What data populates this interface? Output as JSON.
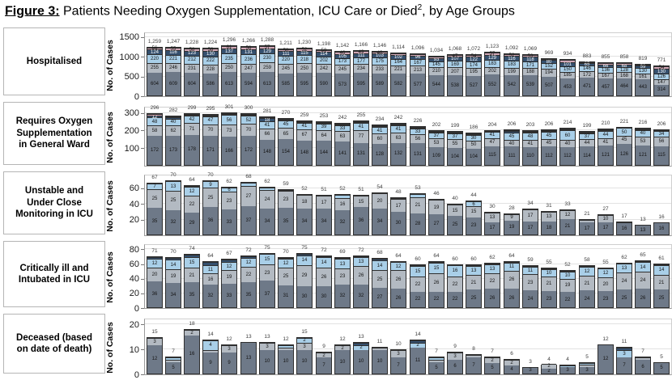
{
  "title": {
    "figure_label": "Figure 3:",
    "main": " Patients Needing Oxygen Supplementation, ICU Care or Died",
    "sup": "2",
    "tail": ", by Age Groups"
  },
  "y_axis_title": "No. of Cases",
  "colors": {
    "band1": "#6e7988",
    "band2": "#b3bac2",
    "band3": "#a9cfe8",
    "band4": "#35506e",
    "band5": "#d0a7b6",
    "outline": "#2f2f2f",
    "grid": "#e2e2e2"
  },
  "chart_data": [
    {
      "type": "bar",
      "stacked": true,
      "label_lines": [
        "Hospitalised"
      ],
      "ylabel": "No. of Cases",
      "yticks": [
        1500,
        1000,
        500,
        0
      ],
      "ylim": [
        0,
        1600
      ],
      "grid": true,
      "totals": [
        1259,
        1247,
        1228,
        1224,
        1296,
        1266,
        1288,
        1211,
        1230,
        1198,
        1142,
        1166,
        1146,
        1114,
        1096,
        1034,
        1068,
        1072,
        1123,
        1092,
        1069,
        969,
        934,
        883,
        855,
        858,
        819,
        771
      ],
      "segments": [
        {
          "name": "age-band-1",
          "color": "#6e7988",
          "text_color": "#151515",
          "values": [
            604,
            609,
            604,
            586,
            613,
            594,
            613,
            585,
            595,
            590,
            573,
            595,
            589,
            582,
            577,
            544,
            538,
            527,
            552,
            542,
            539,
            507,
            453,
            471,
            457,
            464,
            443,
            314
          ]
        },
        {
          "name": "age-band-2",
          "color": "#b3bac2",
          "text_color": "#151515",
          "values": [
            255,
            246,
            231,
            228,
            250,
            247,
            259,
            245,
            250,
            242,
            245,
            234,
            233,
            221,
            213,
            210,
            207,
            195,
            202,
            199,
            188,
            194,
            185,
            172,
            167,
            168,
            161,
            147
          ]
        },
        {
          "name": "age-band-3",
          "color": "#a9cfe8",
          "text_color": "#151515",
          "values": [
            220,
            221,
            212,
            222,
            235,
            236,
            230,
            220,
            218,
            202,
            173,
            177,
            175,
            164,
            167,
            145,
            169,
            174,
            183,
            183,
            171,
            152,
            150,
            146,
            136,
            128,
            130,
            126
          ]
        },
        {
          "name": "age-band-4",
          "color": "#35506e",
          "text_color": "#ffffff",
          "values": [
            124,
            116,
            123,
            130,
            137,
            131,
            129,
            111,
            115,
            114,
            105,
            111,
            103,
            102,
            96,
            93,
            107,
            122,
            129,
            116,
            118,
            80,
            101,
            65,
            66,
            68,
            59,
            130
          ]
        },
        {
          "name": "age-band-5",
          "color": "#d0a7b6",
          "text_color": "#1a1a1a",
          "values": [
            56,
            55,
            58,
            58,
            61,
            58,
            57,
            50,
            52,
            50,
            46,
            49,
            46,
            45,
            43,
            42,
            47,
            54,
            57,
            52,
            53,
            36,
            45,
            29,
            29,
            30,
            26,
            54
          ]
        }
      ]
    },
    {
      "type": "bar",
      "stacked": true,
      "label_lines": [
        "Requires Oxygen",
        "Supplementation",
        "in General Ward"
      ],
      "ylabel": "No. of Cases",
      "yticks": [
        300,
        200,
        100
      ],
      "ylim": [
        0,
        330
      ],
      "grid": true,
      "totals": [
        296,
        282,
        299,
        295,
        301,
        300,
        281,
        270,
        259,
        253,
        242,
        255,
        234,
        242,
        226,
        202,
        199,
        186,
        204,
        206,
        203,
        206,
        214,
        199,
        210,
        221,
        216,
        206
      ],
      "segments": [
        {
          "name": "age-band-1",
          "color": "#6e7988",
          "text_color": "#151515",
          "values": [
            172,
            173,
            178,
            171,
            166,
            172,
            148,
            154,
            148,
            144,
            141,
            131,
            128,
            132,
            131,
            109,
            104,
            104,
            115,
            111,
            110,
            112,
            112,
            114,
            121,
            126,
            121,
            115
          ]
        },
        {
          "name": "age-band-2",
          "color": "#b3bac2",
          "text_color": "#151515",
          "values": [
            58,
            62,
            71,
            70,
            73,
            70,
            66,
            65,
            67,
            64,
            63,
            77,
            60,
            63,
            56,
            53,
            55,
            50,
            47,
            40,
            41,
            45,
            40,
            44,
            41,
            45,
            53,
            56
          ]
        },
        {
          "name": "age-band-3",
          "color": "#a9cfe8",
          "text_color": "#151515",
          "values": [
            48,
            40,
            42,
            47,
            56,
            52,
            41,
            45,
            41,
            39,
            33,
            41,
            41,
            41,
            33,
            37,
            37,
            30,
            41,
            45,
            48,
            45,
            60,
            37,
            44,
            50,
            40,
            34
          ]
        },
        {
          "name": "age-band-4",
          "color": "#35506e",
          "text_color": "#ffffff",
          "values": [
            12,
            5,
            5,
            5,
            4,
            4,
            18,
            4,
            2,
            4,
            3,
            4,
            3,
            4,
            4,
            2,
            2,
            1,
            1,
            7,
            3,
            3,
            1,
            3,
            3,
            0,
            1,
            1
          ]
        },
        {
          "name": "age-band-5",
          "color": "#d0a7b6",
          "text_color": "#1a1a1a",
          "values": [
            6,
            2,
            3,
            2,
            2,
            2,
            8,
            2,
            1,
            2,
            2,
            2,
            2,
            2,
            2,
            1,
            1,
            1,
            0,
            3,
            1,
            1,
            1,
            1,
            1,
            0,
            1,
            0
          ]
        }
      ]
    },
    {
      "type": "bar",
      "stacked": true,
      "label_lines": [
        "Unstable and",
        "Under Close",
        "Monitoring in ICU"
      ],
      "ylabel": "No. of Cases",
      "yticks": [
        60,
        40,
        20
      ],
      "ylim": [
        0,
        76
      ],
      "grid": true,
      "totals": [
        67,
        70,
        64,
        70,
        62,
        68,
        62,
        59,
        52,
        51,
        52,
        51,
        54,
        48,
        53,
        46,
        40,
        44,
        30,
        28,
        34,
        31,
        33,
        21,
        27,
        17,
        13,
        16
      ],
      "segments": [
        {
          "name": "age-band-1",
          "color": "#6e7988",
          "text_color": "#151515",
          "values": [
            35,
            32,
            29,
            36,
            33,
            37,
            34,
            35,
            34,
            34,
            32,
            36,
            34,
            30,
            28,
            27,
            25,
            23,
            17,
            19,
            17,
            18,
            21,
            17,
            17,
            16,
            13,
            16
          ]
        },
        {
          "name": "age-band-2",
          "color": "#b3bac2",
          "text_color": "#151515",
          "values": [
            25,
            25,
            22,
            25,
            23,
            27,
            24,
            23,
            18,
            17,
            16,
            15,
            20,
            17,
            21,
            19,
            15,
            15,
            13,
            9,
            17,
            13,
            12,
            4,
            10,
            1,
            0,
            0
          ]
        },
        {
          "name": "age-band-3",
          "color": "#a9cfe8",
          "text_color": "#151515",
          "values": [
            7,
            13,
            12,
            9,
            6,
            4,
            4,
            1,
            0,
            0,
            4,
            0,
            0,
            1,
            4,
            0,
            0,
            6,
            0,
            0,
            0,
            0,
            0,
            0,
            0,
            0,
            0,
            0
          ]
        },
        {
          "name": "age-band-4",
          "color": "#35506e",
          "text_color": "#ffffff",
          "values": [
            0,
            0,
            1,
            0,
            0,
            0,
            0,
            0,
            0,
            0,
            0,
            0,
            0,
            0,
            0,
            0,
            0,
            0,
            0,
            0,
            0,
            0,
            0,
            0,
            0,
            0,
            0,
            0
          ]
        },
        {
          "name": "age-band-5",
          "color": "#d0a7b6",
          "text_color": "#1a1a1a",
          "values": [
            0,
            0,
            0,
            0,
            0,
            0,
            0,
            0,
            0,
            0,
            0,
            0,
            0,
            0,
            0,
            0,
            0,
            0,
            0,
            0,
            0,
            0,
            0,
            0,
            0,
            0,
            0,
            0
          ]
        }
      ]
    },
    {
      "type": "bar",
      "stacked": true,
      "label_lines": [
        "Critically ill and",
        "Intubated in ICU"
      ],
      "ylabel": "No. of Cases",
      "yticks": [
        80,
        60,
        40,
        20,
        0
      ],
      "ylim": [
        0,
        86
      ],
      "grid": true,
      "totals": [
        71,
        70,
        74,
        64,
        67,
        72,
        75,
        70,
        75,
        72,
        69,
        72,
        68,
        64,
        60,
        64,
        60,
        60,
        62,
        64,
        59,
        55,
        52,
        58,
        55,
        62,
        65,
        61
      ],
      "segments": [
        {
          "name": "age-band-1",
          "color": "#6e7988",
          "text_color": "#151515",
          "values": [
            36,
            34,
            35,
            32,
            33,
            35,
            37,
            31,
            30,
            30,
            32,
            32,
            27,
            26,
            22,
            22,
            22,
            25,
            26,
            26,
            24,
            23,
            22,
            24,
            23,
            25,
            26,
            25
          ]
        },
        {
          "name": "age-band-2",
          "color": "#b3bac2",
          "text_color": "#151515",
          "values": [
            20,
            19,
            21,
            16,
            19,
            22,
            23,
            25,
            29,
            26,
            23,
            26,
            25,
            26,
            22,
            26,
            22,
            21,
            22,
            26,
            23,
            21,
            19,
            21,
            20,
            24,
            24,
            21
          ]
        },
        {
          "name": "age-band-3",
          "color": "#a9cfe8",
          "text_color": "#151515",
          "values": [
            12,
            14,
            15,
            11,
            12,
            12,
            15,
            12,
            14,
            14,
            13,
            13,
            14,
            12,
            15,
            15,
            16,
            13,
            13,
            11,
            11,
            10,
            10,
            12,
            12,
            13,
            14,
            14
          ]
        },
        {
          "name": "age-band-4",
          "color": "#35506e",
          "text_color": "#ffffff",
          "values": [
            3,
            3,
            3,
            5,
            3,
            3,
            0,
            2,
            2,
            2,
            1,
            1,
            2,
            0,
            1,
            1,
            0,
            1,
            1,
            1,
            1,
            1,
            1,
            1,
            0,
            0,
            1,
            1
          ]
        },
        {
          "name": "age-band-5",
          "color": "#d0a7b6",
          "text_color": "#1a1a1a",
          "values": [
            0,
            0,
            0,
            0,
            0,
            0,
            0,
            0,
            0,
            0,
            0,
            0,
            0,
            0,
            0,
            0,
            0,
            0,
            0,
            0,
            0,
            0,
            0,
            0,
            0,
            0,
            0,
            0
          ]
        }
      ]
    },
    {
      "type": "bar",
      "stacked": true,
      "label_lines": [
        "Deceased (based",
        "on date of death)"
      ],
      "ylabel": "No. of Cases",
      "yticks": [
        20,
        10,
        0
      ],
      "ylim": [
        0,
        22
      ],
      "grid": true,
      "totals": [
        15,
        7,
        18,
        14,
        12,
        13,
        13,
        12,
        15,
        9,
        12,
        13,
        11,
        10,
        14,
        7,
        9,
        8,
        7,
        6,
        3,
        4,
        4,
        5,
        12,
        11,
        7,
        5
      ],
      "segments": [
        {
          "name": "age-band-1",
          "color": "#6e7988",
          "text_color": "#151515",
          "values": [
            12,
            5,
            16,
            9,
            9,
            13,
            10,
            10,
            10,
            7,
            10,
            10,
            10,
            7,
            11,
            5,
            6,
            7,
            5,
            4,
            3,
            2,
            3,
            3,
            12,
            7,
            6,
            5
          ]
        },
        {
          "name": "age-band-2",
          "color": "#b3bac2",
          "text_color": "#151515",
          "values": [
            3,
            1,
            2,
            1,
            3,
            0,
            3,
            1,
            3,
            2,
            2,
            0,
            1,
            3,
            0,
            1,
            3,
            1,
            2,
            2,
            0,
            2,
            0,
            1,
            0,
            0,
            1,
            0
          ]
        },
        {
          "name": "age-band-3",
          "color": "#a9cfe8",
          "text_color": "#151515",
          "values": [
            0,
            1,
            0,
            4,
            0,
            0,
            0,
            1,
            2,
            0,
            0,
            2,
            0,
            0,
            2,
            1,
            0,
            0,
            0,
            0,
            0,
            0,
            1,
            1,
            0,
            3,
            0,
            0
          ]
        },
        {
          "name": "age-band-4",
          "color": "#35506e",
          "text_color": "#ffffff",
          "values": [
            0,
            0,
            0,
            0,
            0,
            0,
            0,
            0,
            0,
            0,
            0,
            1,
            0,
            0,
            1,
            0,
            0,
            0,
            0,
            0,
            0,
            0,
            0,
            0,
            0,
            1,
            0,
            0
          ]
        },
        {
          "name": "age-band-5",
          "color": "#d0a7b6",
          "text_color": "#1a1a1a",
          "values": [
            0,
            0,
            0,
            0,
            0,
            0,
            0,
            0,
            0,
            0,
            0,
            0,
            0,
            0,
            0,
            0,
            0,
            0,
            0,
            0,
            0,
            0,
            0,
            0,
            0,
            0,
            0,
            0
          ]
        }
      ]
    }
  ]
}
